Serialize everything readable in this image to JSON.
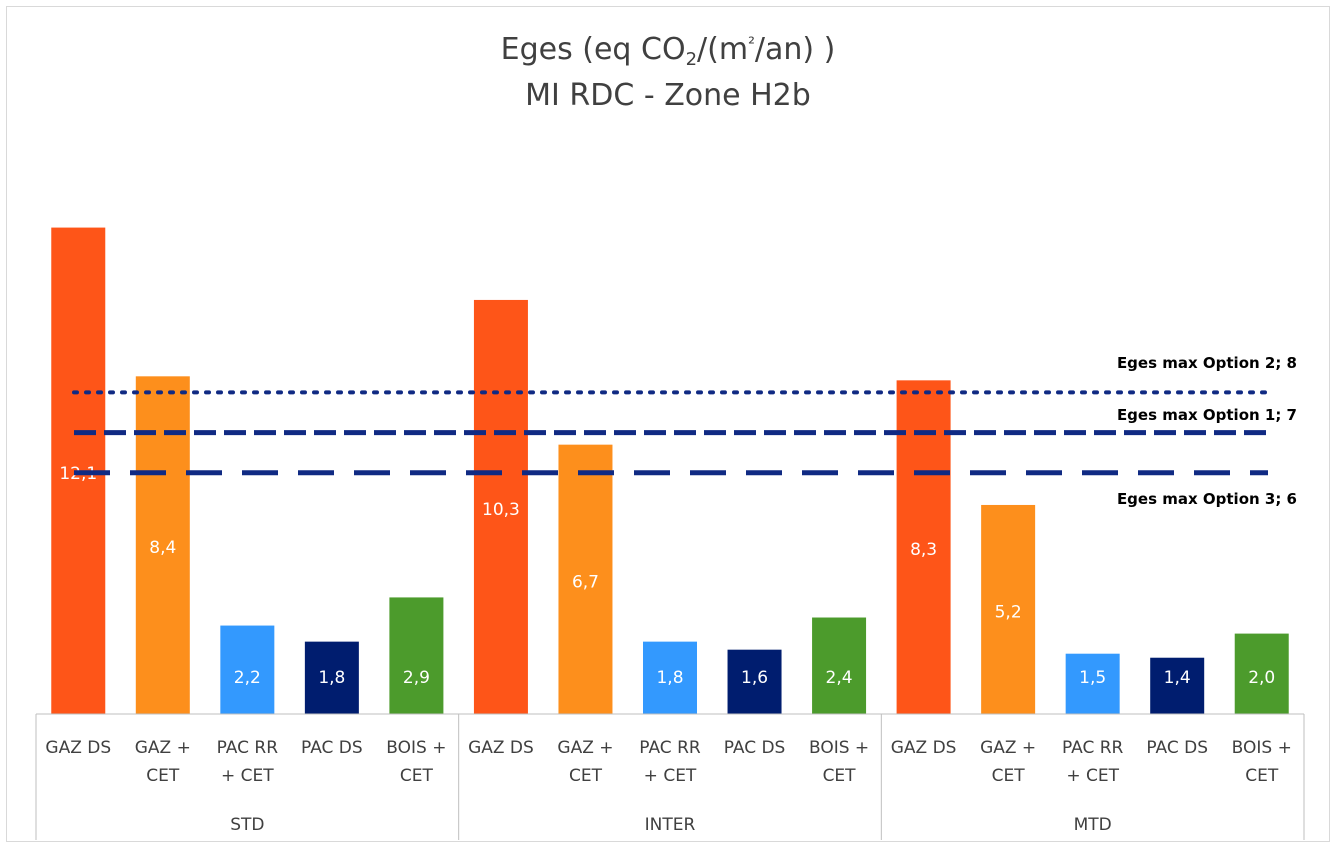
{
  "chart_data": {
    "type": "bar",
    "title_parts": [
      "Eges (eq CO",
      "2",
      "/(m",
      "²",
      "/an) )"
    ],
    "subtitle": "MI RDC - Zone H2b",
    "groups": [
      "STD",
      "INTER",
      "MTD"
    ],
    "categories": [
      [
        "GAZ DS"
      ],
      [
        "GAZ +",
        "CET"
      ],
      [
        "PAC RR",
        "+ CET"
      ],
      [
        "PAC DS"
      ],
      [
        "BOIS +",
        "CET"
      ]
    ],
    "values": [
      [
        12.1,
        8.4,
        2.2,
        1.8,
        2.9
      ],
      [
        10.3,
        6.7,
        1.8,
        1.6,
        2.4
      ],
      [
        8.3,
        5.2,
        1.5,
        1.4,
        2.0
      ]
    ],
    "value_labels": [
      [
        "12,1",
        "8,4",
        "2,2",
        "1,8",
        "2,9"
      ],
      [
        "10,3",
        "6,7",
        "1,8",
        "1,6",
        "2,4"
      ],
      [
        "8,3",
        "5,2",
        "1,5",
        "1,4",
        "2,0"
      ]
    ],
    "bar_colors": [
      "#fe5518",
      "#fd8f1c",
      "#3399fe",
      "#001d6f",
      "#4c9b2c"
    ],
    "ylim": [
      0,
      13
    ],
    "thresholds": [
      {
        "label": "Eges max Option 2; 8",
        "value": 8,
        "style": "dotted"
      },
      {
        "label": "Eges max Option 1; 7",
        "value": 7,
        "style": "dashed"
      },
      {
        "label": "Eges max Option 3; 6",
        "value": 6,
        "style": "long-dash"
      }
    ],
    "threshold_color": "#102a83",
    "grid": false
  }
}
